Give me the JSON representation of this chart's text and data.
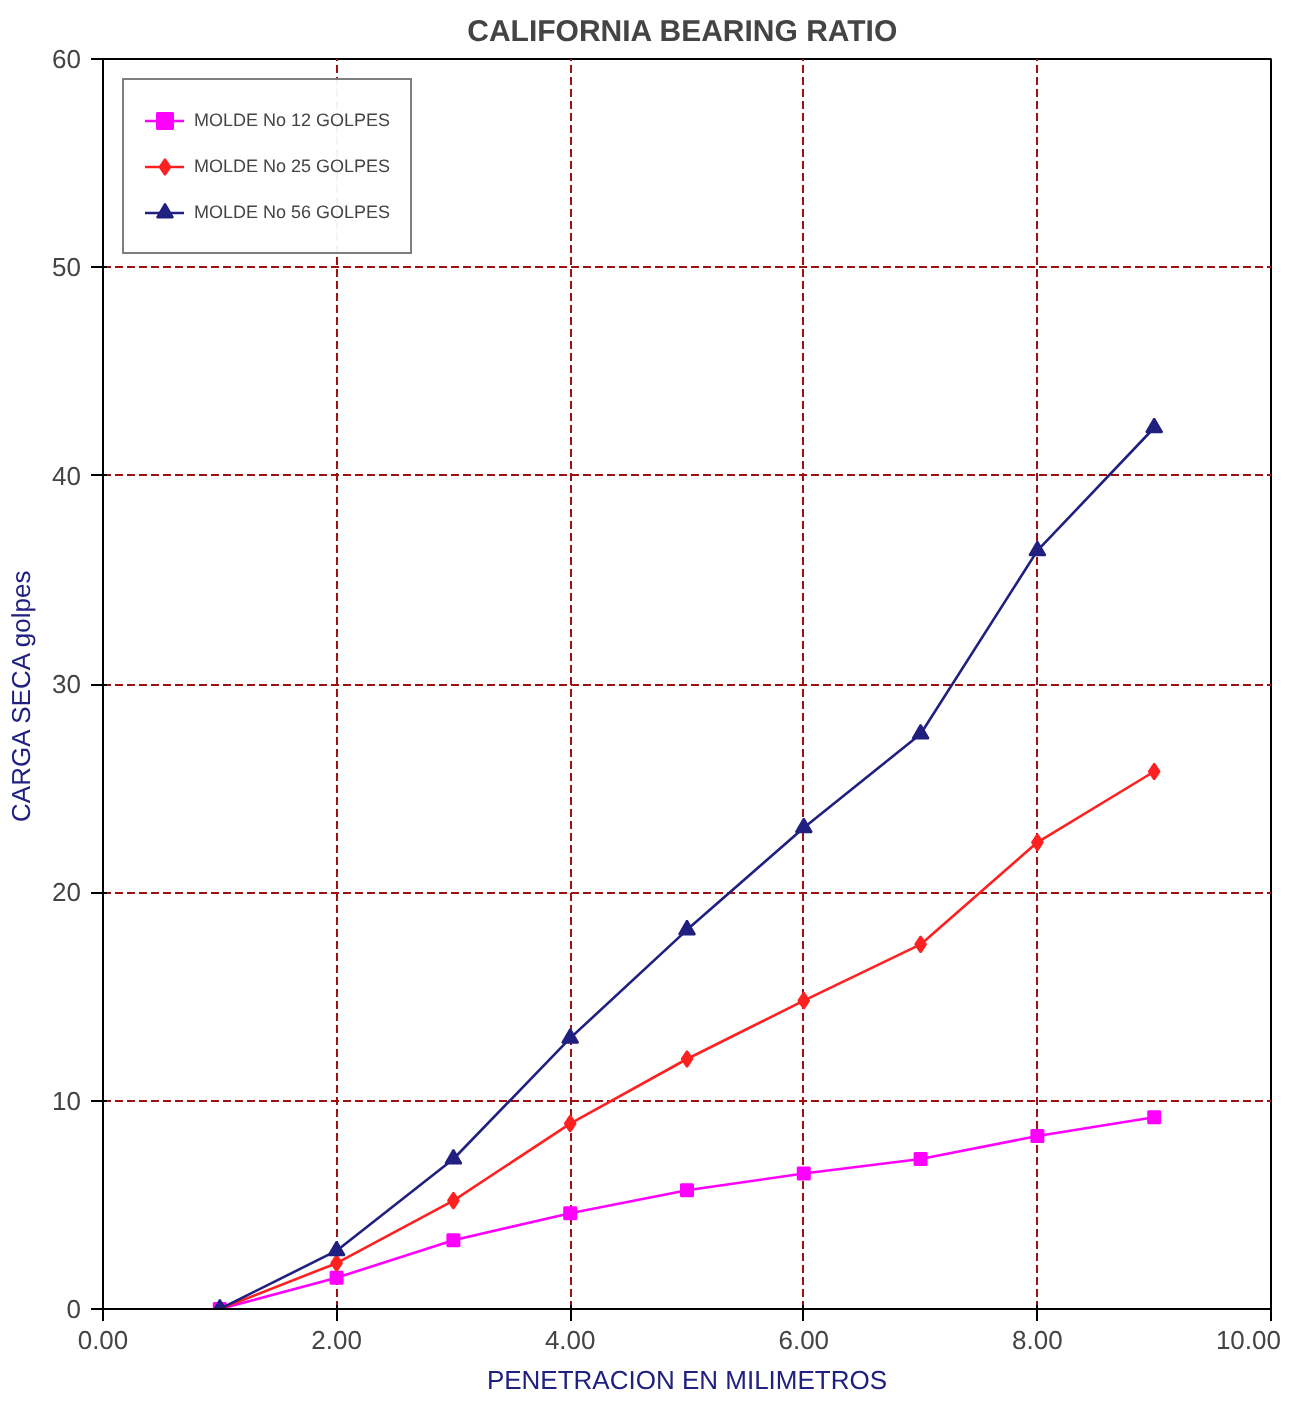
{
  "chart_data": {
    "type": "line",
    "title": "CALIFORNIA BEARING  RATIO",
    "xlabel": "PENETRACION EN MILIMETROS",
    "ylabel": "CARGA  SECA   golpes",
    "x": [
      1,
      2,
      3,
      4,
      5,
      6,
      7,
      8,
      9
    ],
    "series": [
      {
        "name": "MOLDE No 12 GOLPES",
        "color": "#ff00ff",
        "marker": "square",
        "values": [
          0,
          1.5,
          3.3,
          4.6,
          5.7,
          6.5,
          7.2,
          8.3,
          9.2
        ]
      },
      {
        "name": "MOLDE No 25 GOLPES",
        "color": "#ff2020",
        "marker": "diamond",
        "values": [
          0,
          2.2,
          5.2,
          8.9,
          12.0,
          14.8,
          17.5,
          22.4,
          25.8
        ]
      },
      {
        "name": "MOLDE No 56 GOLPES",
        "color": "#202080",
        "marker": "triangle",
        "values": [
          0,
          2.8,
          7.2,
          13.0,
          18.2,
          23.1,
          27.6,
          36.4,
          42.3
        ]
      }
    ],
    "xlim": [
      0,
      10
    ],
    "ylim": [
      0,
      60
    ],
    "xticks": [
      {
        "value": 0,
        "label": "0.00"
      },
      {
        "value": 2,
        "label": "2.00"
      },
      {
        "value": 4,
        "label": "4.00"
      },
      {
        "value": 6,
        "label": "6.00"
      },
      {
        "value": 8,
        "label": "8.00"
      },
      {
        "value": 10,
        "label": "10.00"
      }
    ],
    "yticks": [
      0,
      10,
      20,
      30,
      40,
      50,
      60
    ],
    "grid": true,
    "legend": "top left",
    "line_style": "solid"
  }
}
